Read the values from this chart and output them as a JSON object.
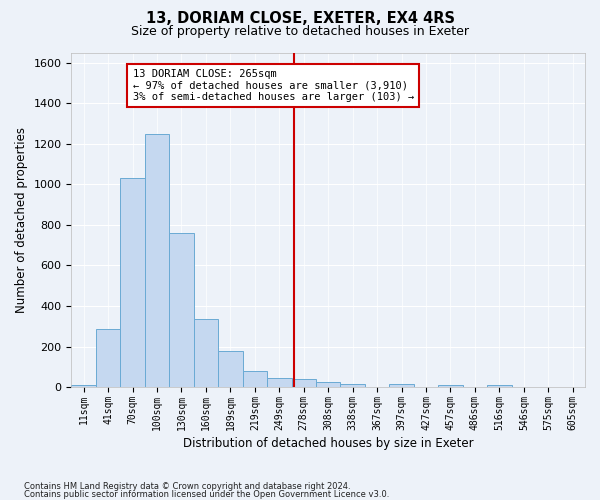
{
  "title1": "13, DORIAM CLOSE, EXETER, EX4 4RS",
  "title2": "Size of property relative to detached houses in Exeter",
  "xlabel": "Distribution of detached houses by size in Exeter",
  "ylabel": "Number of detached properties",
  "footnote1": "Contains HM Land Registry data © Crown copyright and database right 2024.",
  "footnote2": "Contains public sector information licensed under the Open Government Licence v3.0.",
  "bin_labels": [
    "11sqm",
    "41sqm",
    "70sqm",
    "100sqm",
    "130sqm",
    "160sqm",
    "189sqm",
    "219sqm",
    "249sqm",
    "278sqm",
    "308sqm",
    "338sqm",
    "367sqm",
    "397sqm",
    "427sqm",
    "457sqm",
    "486sqm",
    "516sqm",
    "546sqm",
    "575sqm",
    "605sqm"
  ],
  "bar_values": [
    10,
    285,
    1030,
    1250,
    760,
    335,
    180,
    80,
    45,
    40,
    25,
    15,
    0,
    15,
    0,
    10,
    0,
    10,
    0,
    0,
    0
  ],
  "bar_color": "#c5d8f0",
  "bar_edge_color": "#6aaad4",
  "ylim": [
    0,
    1650
  ],
  "yticks": [
    0,
    200,
    400,
    600,
    800,
    1000,
    1200,
    1400,
    1600
  ],
  "vline_x": 8.62,
  "vline_color": "#cc0000",
  "annotation_line1": "13 DORIAM CLOSE: 265sqm",
  "annotation_line2": "← 97% of detached houses are smaller (3,910)",
  "annotation_line3": "3% of semi-detached houses are larger (103) →",
  "bg_color": "#edf2f9",
  "grid_color": "#ffffff"
}
